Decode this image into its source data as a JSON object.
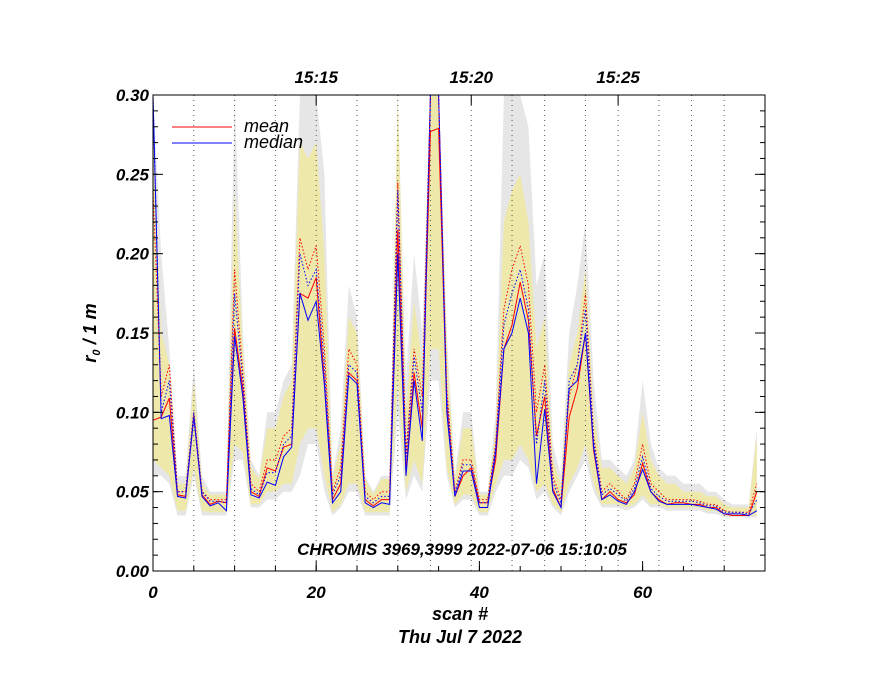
{
  "chart_data": {
    "type": "line",
    "xlabel": "scan #",
    "date_label": "Thu Jul  7 2022",
    "ylabel_main": "r",
    "ylabel_sub": "0",
    "ylabel_rest": " / 1 m",
    "xlim": [
      0,
      75
    ],
    "ylim": [
      0,
      0.3
    ],
    "x_ticks": [
      0,
      20,
      40,
      60
    ],
    "x_tick_labels": [
      "0",
      "20",
      "40",
      "60"
    ],
    "y_ticks": [
      0,
      0.05,
      0.1,
      0.15,
      0.2,
      0.25,
      0.3
    ],
    "y_tick_labels": [
      "0.00",
      "0.05",
      "0.10",
      "0.15",
      "0.20",
      "0.25",
      "0.30"
    ],
    "time_ticks": [
      {
        "x": 20,
        "label": "15:15"
      },
      {
        "x": 39,
        "label": "15:20"
      },
      {
        "x": 57,
        "label": "15:25"
      }
    ],
    "vertical_gridlines": [
      5,
      10,
      15,
      20,
      25,
      30,
      34,
      39,
      44,
      48,
      53,
      57,
      62,
      66,
      70,
      75
    ],
    "annotation": "CHROMIS 3969,3999 2022-07-06 15:10:05",
    "colors": {
      "mean": "#ff0000",
      "median": "#0000ff",
      "band_outer": "#e6e6e6",
      "band_inner": "#eee8aa"
    },
    "series": [
      {
        "name": "mean",
        "color": "#ff0000",
        "values": [
          0.095,
          0.097,
          0.109,
          0.048,
          0.047,
          0.098,
          0.048,
          0.042,
          0.044,
          0.043,
          0.153,
          0.115,
          0.05,
          0.047,
          0.065,
          0.063,
          0.078,
          0.08,
          0.175,
          0.172,
          0.185,
          0.12,
          0.045,
          0.055,
          0.125,
          0.12,
          0.045,
          0.041,
          0.045,
          0.045,
          0.215,
          0.063,
          0.125,
          0.09,
          0.277,
          0.279,
          0.105,
          0.047,
          0.06,
          0.065,
          0.043,
          0.043,
          0.07,
          0.14,
          0.155,
          0.182,
          0.158,
          0.085,
          0.11,
          0.052,
          0.04,
          0.097,
          0.115,
          0.15,
          0.076,
          0.045,
          0.05,
          0.045,
          0.043,
          0.048,
          0.068,
          0.05,
          0.045,
          0.042,
          0.043,
          0.043,
          0.042,
          0.042,
          0.04,
          0.04,
          0.036,
          0.035,
          0.035,
          0.035,
          0.05
        ]
      },
      {
        "name": "median",
        "color": "#0000ff",
        "values": [
          0.3,
          0.096,
          0.098,
          0.047,
          0.046,
          0.097,
          0.047,
          0.041,
          0.043,
          0.038,
          0.148,
          0.11,
          0.048,
          0.046,
          0.056,
          0.054,
          0.072,
          0.078,
          0.175,
          0.158,
          0.17,
          0.117,
          0.043,
          0.05,
          0.123,
          0.118,
          0.043,
          0.04,
          0.043,
          0.042,
          0.2,
          0.06,
          0.12,
          0.082,
          0.3,
          0.3,
          0.1,
          0.047,
          0.063,
          0.063,
          0.04,
          0.04,
          0.075,
          0.14,
          0.15,
          0.172,
          0.15,
          0.055,
          0.102,
          0.05,
          0.04,
          0.115,
          0.12,
          0.15,
          0.078,
          0.045,
          0.048,
          0.044,
          0.042,
          0.05,
          0.064,
          0.05,
          0.044,
          0.042,
          0.042,
          0.042,
          0.042,
          0.041,
          0.04,
          0.039,
          0.036,
          0.036,
          0.036,
          0.035,
          0.038
        ]
      },
      {
        "name": "mean-dotted",
        "color": "#ff0000",
        "dash": true,
        "values": [
          0.24,
          0.11,
          0.13,
          0.05,
          0.05,
          0.1,
          0.05,
          0.045,
          0.045,
          0.045,
          0.19,
          0.125,
          0.055,
          0.05,
          0.07,
          0.07,
          0.085,
          0.09,
          0.21,
          0.19,
          0.205,
          0.14,
          0.05,
          0.065,
          0.14,
          0.13,
          0.05,
          0.045,
          0.05,
          0.05,
          0.245,
          0.075,
          0.14,
          0.11,
          0.3,
          0.3,
          0.115,
          0.05,
          0.07,
          0.07,
          0.045,
          0.045,
          0.08,
          0.165,
          0.19,
          0.205,
          0.18,
          0.1,
          0.13,
          0.06,
          0.045,
          0.11,
          0.13,
          0.175,
          0.085,
          0.05,
          0.055,
          0.05,
          0.045,
          0.055,
          0.08,
          0.055,
          0.05,
          0.045,
          0.045,
          0.045,
          0.045,
          0.044,
          0.042,
          0.042,
          0.038,
          0.037,
          0.037,
          0.037,
          0.055
        ]
      },
      {
        "name": "median-dotted",
        "color": "#0000ff",
        "dash": true,
        "values": [
          0.3,
          0.1,
          0.12,
          0.05,
          0.05,
          0.1,
          0.05,
          0.044,
          0.044,
          0.043,
          0.175,
          0.12,
          0.052,
          0.048,
          0.062,
          0.062,
          0.08,
          0.085,
          0.2,
          0.18,
          0.19,
          0.13,
          0.048,
          0.06,
          0.13,
          0.125,
          0.047,
          0.043,
          0.047,
          0.047,
          0.24,
          0.07,
          0.135,
          0.1,
          0.3,
          0.3,
          0.11,
          0.049,
          0.067,
          0.067,
          0.043,
          0.043,
          0.078,
          0.155,
          0.175,
          0.19,
          0.165,
          0.08,
          0.12,
          0.056,
          0.043,
          0.12,
          0.13,
          0.165,
          0.082,
          0.048,
          0.052,
          0.048,
          0.044,
          0.052,
          0.072,
          0.052,
          0.047,
          0.044,
          0.044,
          0.044,
          0.044,
          0.043,
          0.041,
          0.041,
          0.037,
          0.037,
          0.037,
          0.036,
          0.045
        ]
      }
    ],
    "bands": [
      {
        "name": "outer-range",
        "color": "#e6e6e6",
        "low": [
          0.06,
          0.06,
          0.055,
          0.035,
          0.035,
          0.06,
          0.035,
          0.035,
          0.035,
          0.035,
          0.07,
          0.07,
          0.04,
          0.04,
          0.045,
          0.045,
          0.05,
          0.05,
          0.06,
          0.08,
          0.08,
          0.05,
          0.035,
          0.04,
          0.05,
          0.05,
          0.035,
          0.035,
          0.035,
          0.035,
          0.1,
          0.045,
          0.06,
          0.05,
          0.12,
          0.12,
          0.06,
          0.04,
          0.045,
          0.045,
          0.035,
          0.035,
          0.05,
          0.06,
          0.06,
          0.07,
          0.065,
          0.045,
          0.05,
          0.04,
          0.035,
          0.05,
          0.06,
          0.07,
          0.05,
          0.04,
          0.04,
          0.04,
          0.038,
          0.04,
          0.045,
          0.04,
          0.04,
          0.038,
          0.038,
          0.038,
          0.038,
          0.038,
          0.036,
          0.036,
          0.034,
          0.034,
          0.034,
          0.034,
          0.034
        ],
        "high": [
          0.3,
          0.2,
          0.14,
          0.06,
          0.06,
          0.13,
          0.06,
          0.05,
          0.05,
          0.05,
          0.3,
          0.15,
          0.07,
          0.06,
          0.1,
          0.1,
          0.12,
          0.13,
          0.3,
          0.3,
          0.3,
          0.25,
          0.06,
          0.09,
          0.18,
          0.16,
          0.06,
          0.05,
          0.06,
          0.06,
          0.3,
          0.12,
          0.2,
          0.15,
          0.3,
          0.3,
          0.15,
          0.06,
          0.1,
          0.1,
          0.05,
          0.05,
          0.1,
          0.3,
          0.3,
          0.3,
          0.28,
          0.18,
          0.2,
          0.08,
          0.06,
          0.15,
          0.18,
          0.22,
          0.12,
          0.07,
          0.07,
          0.065,
          0.06,
          0.07,
          0.12,
          0.08,
          0.065,
          0.06,
          0.06,
          0.055,
          0.055,
          0.055,
          0.05,
          0.05,
          0.045,
          0.042,
          0.042,
          0.042,
          0.09
        ]
      },
      {
        "name": "inner-range",
        "color": "#eee8aa",
        "low": [
          0.07,
          0.065,
          0.06,
          0.038,
          0.038,
          0.065,
          0.038,
          0.037,
          0.037,
          0.037,
          0.08,
          0.075,
          0.042,
          0.042,
          0.05,
          0.05,
          0.055,
          0.055,
          0.08,
          0.09,
          0.09,
          0.06,
          0.037,
          0.042,
          0.055,
          0.055,
          0.037,
          0.037,
          0.037,
          0.037,
          0.12,
          0.05,
          0.07,
          0.055,
          0.14,
          0.14,
          0.065,
          0.042,
          0.048,
          0.048,
          0.037,
          0.037,
          0.055,
          0.07,
          0.07,
          0.08,
          0.07,
          0.05,
          0.055,
          0.042,
          0.037,
          0.055,
          0.065,
          0.08,
          0.055,
          0.042,
          0.042,
          0.042,
          0.04,
          0.042,
          0.048,
          0.042,
          0.042,
          0.04,
          0.04,
          0.04,
          0.04,
          0.04,
          0.038,
          0.038,
          0.035,
          0.035,
          0.035,
          0.035,
          0.035
        ],
        "high": [
          0.28,
          0.15,
          0.13,
          0.055,
          0.055,
          0.12,
          0.055,
          0.048,
          0.048,
          0.048,
          0.24,
          0.14,
          0.065,
          0.058,
          0.09,
          0.09,
          0.11,
          0.12,
          0.27,
          0.26,
          0.27,
          0.2,
          0.058,
          0.08,
          0.16,
          0.15,
          0.058,
          0.048,
          0.058,
          0.058,
          0.3,
          0.1,
          0.17,
          0.13,
          0.3,
          0.3,
          0.14,
          0.058,
          0.09,
          0.09,
          0.048,
          0.048,
          0.09,
          0.22,
          0.24,
          0.25,
          0.22,
          0.14,
          0.16,
          0.07,
          0.055,
          0.13,
          0.15,
          0.19,
          0.1,
          0.065,
          0.065,
          0.06,
          0.055,
          0.065,
          0.1,
          0.07,
          0.06,
          0.055,
          0.055,
          0.05,
          0.05,
          0.05,
          0.047,
          0.047,
          0.042,
          0.04,
          0.04,
          0.04,
          0.085
        ]
      }
    ]
  },
  "legend": {
    "mean_label": "mean",
    "median_label": "median"
  }
}
